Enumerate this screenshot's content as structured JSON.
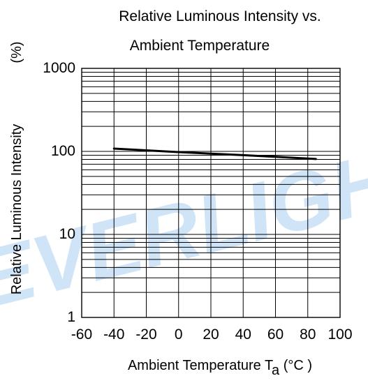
{
  "chart_data": {
    "type": "line",
    "title_lines": [
      "Relative Luminous Intensity vs.",
      "Ambient Temperature"
    ],
    "xlabel": "Ambient Temperature T",
    "xlabel_sub": "a",
    "xlabel_unit": " (°C )",
    "ylabel": "Relative Luminous Intensity",
    "ylabel_unit": "(%)",
    "x_scale": "linear",
    "y_scale": "log",
    "xlim": [
      -60,
      100
    ],
    "ylim": [
      1,
      1000
    ],
    "x_ticks": [
      -60,
      -40,
      -20,
      0,
      20,
      40,
      60,
      80,
      100
    ],
    "x_tick_labels": [
      "-60",
      "-40",
      "-20",
      "0",
      "20",
      "40",
      "60",
      "80",
      "100"
    ],
    "y_ticks": [
      1,
      10,
      100,
      1000
    ],
    "y_tick_labels": [
      "1",
      "10",
      "100",
      "1000"
    ],
    "grid": true,
    "series": [
      {
        "x": [
          -40,
          -20,
          0,
          20,
          40,
          60,
          85
        ],
        "y": [
          108,
          103,
          98,
          94,
          90,
          86,
          81
        ],
        "color": "#000000"
      }
    ],
    "watermark": "EVERLIGHT",
    "watermark_color": "#cfe4f7"
  }
}
